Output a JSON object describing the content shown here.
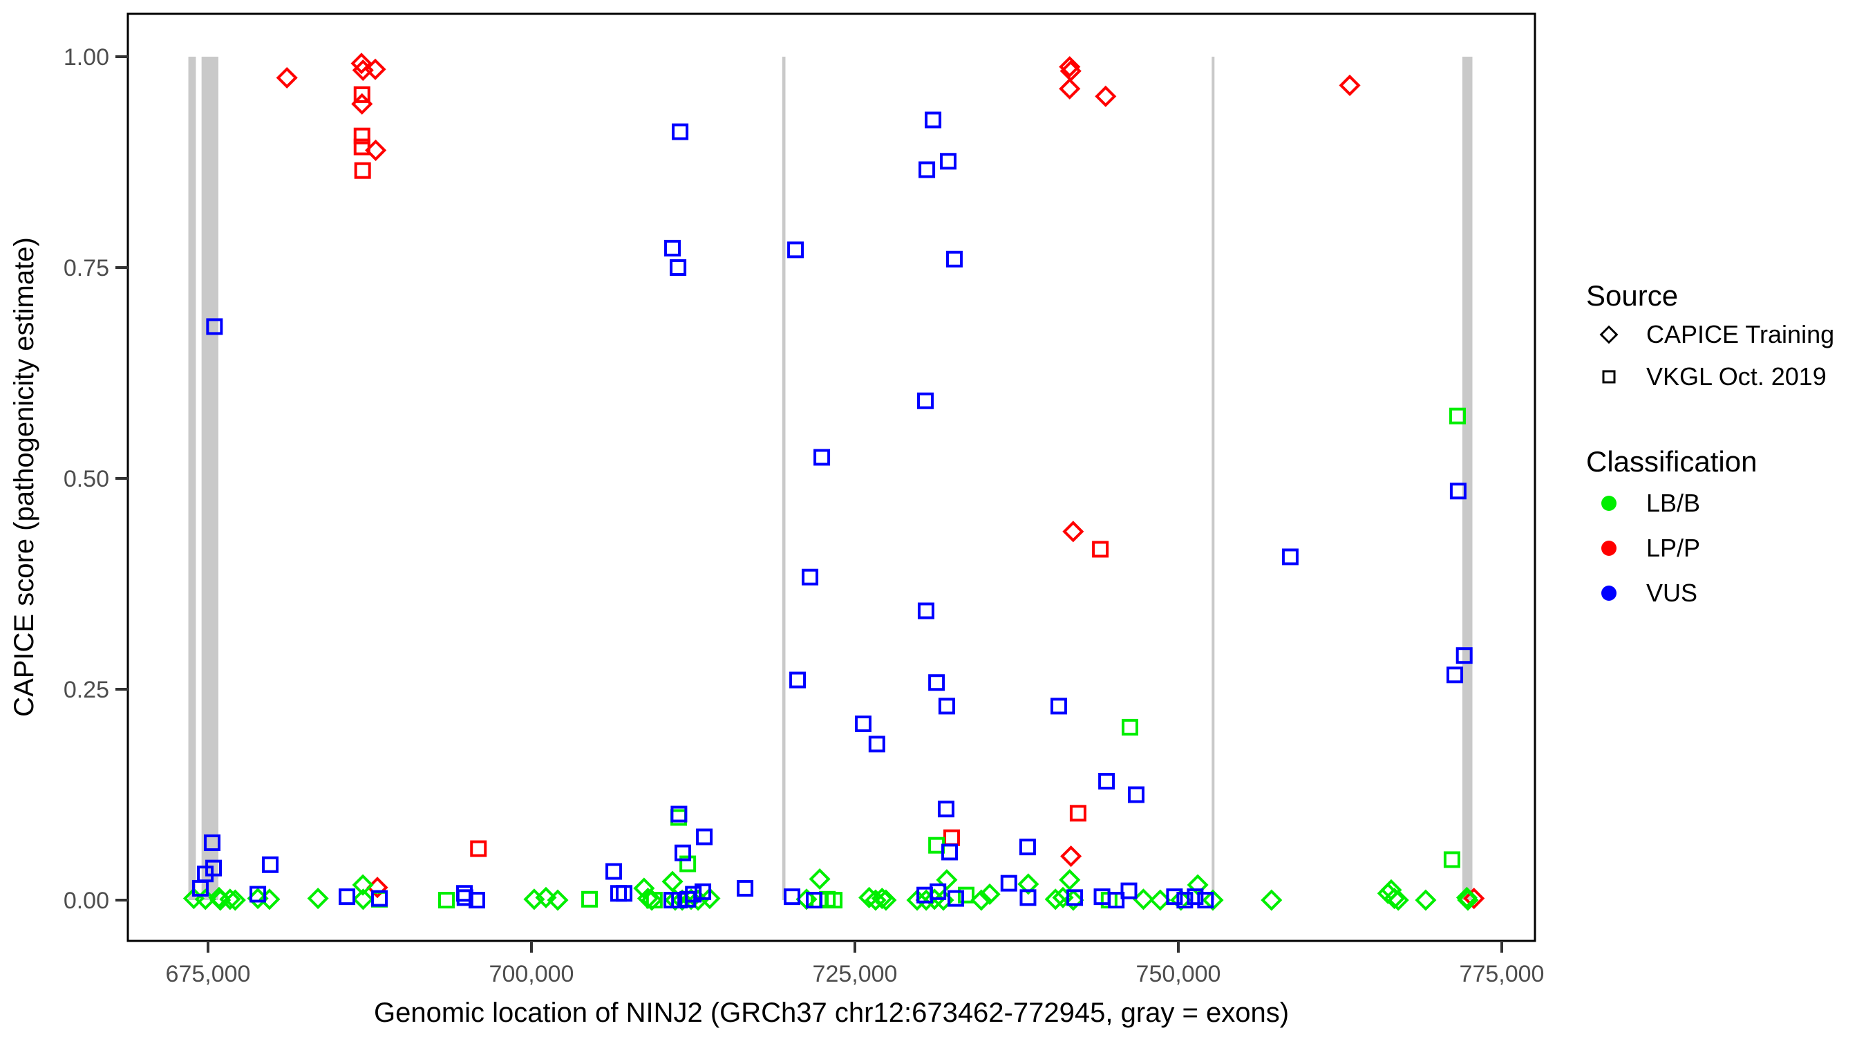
{
  "figure": {
    "x_axis": {
      "title": "Genomic location of NINJ2 (GRCh37 chr12:673462-772945, gray = exons)",
      "ticks": [
        {
          "value": 675000,
          "label": "675,000"
        },
        {
          "value": 700000,
          "label": "700,000"
        },
        {
          "value": 725000,
          "label": "725,000"
        },
        {
          "value": 750000,
          "label": "750,000"
        },
        {
          "value": 775000,
          "label": "775,000"
        }
      ]
    },
    "y_axis": {
      "title": "CAPICE score (pathogenicity estimate)",
      "ticks": [
        {
          "value": 0.0,
          "label": "0.00"
        },
        {
          "value": 0.25,
          "label": "0.25"
        },
        {
          "value": 0.5,
          "label": "0.50"
        },
        {
          "value": 0.75,
          "label": "0.75"
        },
        {
          "value": 1.0,
          "label": "1.00"
        }
      ]
    },
    "legend": {
      "source": {
        "title": "Source",
        "items": [
          {
            "label": "CAPICE Training",
            "marker": "diamond"
          },
          {
            "label": "VKGL Oct. 2019",
            "marker": "square"
          }
        ]
      },
      "classification": {
        "title": "Classification",
        "items": [
          {
            "label": "LB/B",
            "color": "#00EE00"
          },
          {
            "label": "LP/P",
            "color": "#FF0000"
          },
          {
            "label": "VUS",
            "color": "#0000FF"
          }
        ]
      }
    },
    "colors": {
      "lbb": "#00EE00",
      "lpp": "#FF0000",
      "vus": "#0000FF",
      "exon_gray": "#C9C9C9",
      "tick_text": "#4D4D4D",
      "axis_line": "#000000"
    }
  },
  "chart_data": {
    "type": "scatter",
    "title": "",
    "xlabel": "Genomic location of NINJ2 (GRCh37 chr12:673462-772945, gray = exons)",
    "ylabel": "CAPICE score (pathogenicity estimate)",
    "xlim": [
      668800,
      777600
    ],
    "ylim": [
      -0.05,
      1.05
    ],
    "grid": false,
    "legend_position": "right",
    "exons": [
      [
        673480,
        674060
      ],
      [
        674500,
        675800
      ],
      [
        719380,
        719630
      ],
      [
        752580,
        752780
      ],
      [
        771950,
        772730
      ]
    ],
    "series": [
      {
        "name": "CAPICE Training LP/P",
        "source": "CAPICE Training",
        "classification": "LP/P",
        "marker": "diamond",
        "color": "#FF0000",
        "points": [
          [
            681100,
            0.975
          ],
          [
            686860,
            0.992
          ],
          [
            686980,
            0.984
          ],
          [
            687930,
            0.985
          ],
          [
            686900,
            0.944
          ],
          [
            687960,
            0.889
          ],
          [
            688090,
            0.015
          ],
          [
            741600,
            0.988
          ],
          [
            741680,
            0.983
          ],
          [
            741600,
            0.962
          ],
          [
            744380,
            0.953
          ],
          [
            741870,
            0.437
          ],
          [
            741700,
            0.052
          ],
          [
            763250,
            0.966
          ],
          [
            772850,
            0.002
          ]
        ]
      },
      {
        "name": "VKGL LP/P",
        "source": "VKGL Oct. 2019",
        "classification": "LP/P",
        "marker": "square",
        "color": "#FF0000",
        "points": [
          [
            686900,
            0.955
          ],
          [
            686900,
            0.906
          ],
          [
            686900,
            0.893
          ],
          [
            686950,
            0.865
          ],
          [
            695900,
            0.061
          ],
          [
            732480,
            0.074
          ],
          [
            742250,
            0.103
          ],
          [
            743970,
            0.416
          ]
        ]
      },
      {
        "name": "CAPICE Training LB/B",
        "source": "CAPICE Training",
        "classification": "LB/B",
        "marker": "diamond",
        "color": "#00EE00",
        "points": [
          [
            673900,
            0.002
          ],
          [
            674800,
            0.001
          ],
          [
            675850,
            0.003
          ],
          [
            675950,
            0.0
          ],
          [
            676700,
            0.001
          ],
          [
            677100,
            0.0
          ],
          [
            678850,
            0.002
          ],
          [
            679750,
            0.001
          ],
          [
            683500,
            0.002
          ],
          [
            686970,
            0.018
          ],
          [
            686990,
            0.001
          ],
          [
            700210,
            0.001
          ],
          [
            701120,
            0.003
          ],
          [
            702030,
            0.0
          ],
          [
            708700,
            0.014
          ],
          [
            709000,
            0.002
          ],
          [
            709300,
            0.0
          ],
          [
            710900,
            0.022
          ],
          [
            711110,
            0.0
          ],
          [
            711650,
            0.0
          ],
          [
            712340,
            0.001
          ],
          [
            712880,
            0.0
          ],
          [
            713780,
            0.002
          ],
          [
            721260,
            0.001
          ],
          [
            722280,
            0.025
          ],
          [
            726100,
            0.003
          ],
          [
            726600,
            0.0
          ],
          [
            727100,
            0.002
          ],
          [
            727400,
            0.0
          ],
          [
            729810,
            0.0
          ],
          [
            730510,
            0.0
          ],
          [
            731150,
            0.001
          ],
          [
            731840,
            0.0
          ],
          [
            732100,
            0.024
          ],
          [
            734770,
            0.0
          ],
          [
            735420,
            0.007
          ],
          [
            738400,
            0.019
          ],
          [
            740500,
            0.001
          ],
          [
            741080,
            0.003
          ],
          [
            741600,
            0.024
          ],
          [
            741880,
            0.0
          ],
          [
            747300,
            0.001
          ],
          [
            748600,
            0.0
          ],
          [
            750200,
            0.0
          ],
          [
            751500,
            0.018
          ],
          [
            752670,
            0.0
          ],
          [
            757200,
            0.0
          ],
          [
            766200,
            0.008
          ],
          [
            766450,
            0.012
          ],
          [
            766700,
            0.002
          ],
          [
            767000,
            0.0
          ],
          [
            769120,
            0.0
          ],
          [
            772300,
            0.003
          ],
          [
            772380,
            0.0
          ]
        ]
      },
      {
        "name": "VKGL LB/B",
        "source": "VKGL Oct. 2019",
        "classification": "LB/B",
        "marker": "square",
        "color": "#00EE00",
        "points": [
          [
            688250,
            0.001
          ],
          [
            693430,
            0.0
          ],
          [
            704490,
            0.001
          ],
          [
            709500,
            0.0
          ],
          [
            711380,
            0.098
          ],
          [
            712080,
            0.043
          ],
          [
            722230,
            0.0
          ],
          [
            722870,
            0.001
          ],
          [
            723400,
            0.0
          ],
          [
            731310,
            0.065
          ],
          [
            733600,
            0.006
          ],
          [
            744650,
            0.0
          ],
          [
            746260,
            0.205
          ],
          [
            771150,
            0.048
          ],
          [
            771580,
            0.574
          ]
        ]
      },
      {
        "name": "VKGL VUS",
        "source": "VKGL Oct. 2019",
        "classification": "VUS",
        "marker": "square",
        "color": "#0000FF",
        "points": [
          [
            674410,
            0.014
          ],
          [
            674790,
            0.031
          ],
          [
            675320,
            0.068
          ],
          [
            675430,
            0.038
          ],
          [
            675500,
            0.68
          ],
          [
            678850,
            0.007
          ],
          [
            679810,
            0.042
          ],
          [
            685740,
            0.004
          ],
          [
            688250,
            0.002
          ],
          [
            694820,
            0.008
          ],
          [
            694860,
            0.003
          ],
          [
            695780,
            0.0
          ],
          [
            706360,
            0.034
          ],
          [
            706730,
            0.008
          ],
          [
            707160,
            0.008
          ],
          [
            710850,
            0.0
          ],
          [
            710900,
            0.773
          ],
          [
            711330,
            0.75
          ],
          [
            711400,
            0.102
          ],
          [
            711440,
            0.0
          ],
          [
            711490,
            0.911
          ],
          [
            711700,
            0.056
          ],
          [
            712080,
            0.001
          ],
          [
            712510,
            0.007
          ],
          [
            713250,
            0.01
          ],
          [
            713360,
            0.075
          ],
          [
            716510,
            0.014
          ],
          [
            720140,
            0.004
          ],
          [
            720410,
            0.771
          ],
          [
            720570,
            0.261
          ],
          [
            721530,
            0.383
          ],
          [
            721850,
            0.0
          ],
          [
            722440,
            0.525
          ],
          [
            725640,
            0.209
          ],
          [
            726700,
            0.185
          ],
          [
            730400,
            0.006
          ],
          [
            730450,
            0.592
          ],
          [
            730500,
            0.343
          ],
          [
            730560,
            0.866
          ],
          [
            731040,
            0.925
          ],
          [
            731310,
            0.258
          ],
          [
            731420,
            0.01
          ],
          [
            732050,
            0.108
          ],
          [
            732100,
            0.23
          ],
          [
            732210,
            0.876
          ],
          [
            732320,
            0.057
          ],
          [
            732690,
            0.76
          ],
          [
            732800,
            0.002
          ],
          [
            736900,
            0.02
          ],
          [
            738350,
            0.063
          ],
          [
            738380,
            0.003
          ],
          [
            740760,
            0.23
          ],
          [
            741990,
            0.003
          ],
          [
            744100,
            0.004
          ],
          [
            744450,
            0.141
          ],
          [
            745200,
            0.0
          ],
          [
            746180,
            0.011
          ],
          [
            746740,
            0.125
          ],
          [
            749700,
            0.004
          ],
          [
            750500,
            0.0
          ],
          [
            751300,
            0.004
          ],
          [
            752100,
            0.0
          ],
          [
            758650,
            0.407
          ],
          [
            771370,
            0.267
          ],
          [
            771630,
            0.485
          ],
          [
            772100,
            0.29
          ]
        ]
      }
    ]
  }
}
